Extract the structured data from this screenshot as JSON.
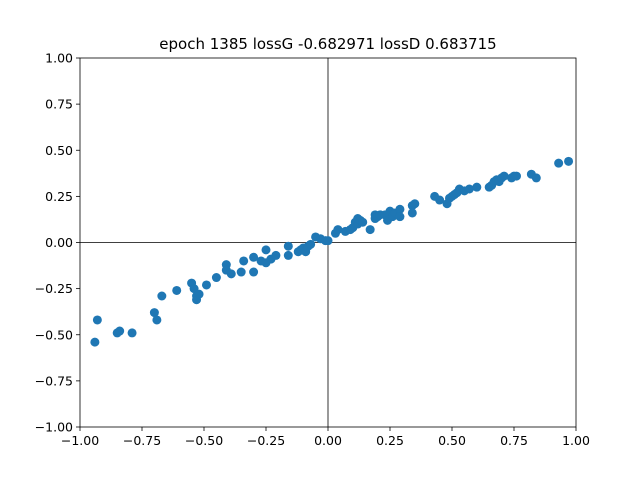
{
  "chart_data": {
    "type": "scatter",
    "title": "epoch 1385 lossG -0.682971 lossD 0.683715",
    "xlabel": "",
    "ylabel": "",
    "xlim": [
      -1.0,
      1.0
    ],
    "ylim": [
      -1.0,
      1.0
    ],
    "grid": false,
    "legend": "none",
    "reference_lines": {
      "x": 0,
      "y": 0
    },
    "xticks": [
      -1.0,
      -0.75,
      -0.5,
      -0.25,
      0.0,
      0.25,
      0.5,
      0.75,
      1.0
    ],
    "xtick_labels": [
      "−1.00",
      "−0.75",
      "−0.50",
      "−0.25",
      "0.00",
      "0.25",
      "0.50",
      "0.75",
      "1.00"
    ],
    "yticks": [
      -1.0,
      -0.75,
      -0.5,
      -0.25,
      0.0,
      0.25,
      0.5,
      0.75,
      1.0
    ],
    "ytick_labels": [
      "−1.00",
      "−0.75",
      "−0.50",
      "−0.25",
      "0.00",
      "0.25",
      "0.50",
      "0.75",
      "1.00"
    ],
    "colors": {
      "points": "#1f77b4",
      "axes": "#000000",
      "background": "#ffffff"
    },
    "series": [
      {
        "points": [
          [
            -0.94,
            -0.54
          ],
          [
            -0.93,
            -0.42
          ],
          [
            -0.85,
            -0.49
          ],
          [
            -0.84,
            -0.48
          ],
          [
            -0.79,
            -0.49
          ],
          [
            -0.7,
            -0.38
          ],
          [
            -0.69,
            -0.42
          ],
          [
            -0.67,
            -0.29
          ],
          [
            -0.61,
            -0.26
          ],
          [
            -0.55,
            -0.22
          ],
          [
            -0.54,
            -0.25
          ],
          [
            -0.53,
            -0.31
          ],
          [
            -0.53,
            -0.29
          ],
          [
            -0.52,
            -0.28
          ],
          [
            -0.49,
            -0.23
          ],
          [
            -0.45,
            -0.19
          ],
          [
            -0.41,
            -0.12
          ],
          [
            -0.41,
            -0.15
          ],
          [
            -0.39,
            -0.17
          ],
          [
            -0.35,
            -0.16
          ],
          [
            -0.34,
            -0.1
          ],
          [
            -0.3,
            -0.16
          ],
          [
            -0.3,
            -0.08
          ],
          [
            -0.27,
            -0.1
          ],
          [
            -0.25,
            -0.04
          ],
          [
            -0.25,
            -0.11
          ],
          [
            -0.23,
            -0.09
          ],
          [
            -0.21,
            -0.07
          ],
          [
            -0.16,
            -0.07
          ],
          [
            -0.16,
            -0.02
          ],
          [
            -0.12,
            -0.05
          ],
          [
            -0.11,
            -0.04
          ],
          [
            -0.1,
            -0.03
          ],
          [
            -0.09,
            -0.05
          ],
          [
            -0.08,
            -0.02
          ],
          [
            -0.07,
            -0.01
          ],
          [
            -0.05,
            0.03
          ],
          [
            -0.03,
            0.02
          ],
          [
            -0.01,
            0.01
          ],
          [
            0.0,
            0.01
          ],
          [
            0.03,
            0.05
          ],
          [
            0.04,
            0.07
          ],
          [
            0.07,
            0.06
          ],
          [
            0.09,
            0.07
          ],
          [
            0.1,
            0.08
          ],
          [
            0.11,
            0.11
          ],
          [
            0.12,
            0.1
          ],
          [
            0.12,
            0.13
          ],
          [
            0.13,
            0.12
          ],
          [
            0.14,
            0.11
          ],
          [
            0.17,
            0.07
          ],
          [
            0.19,
            0.13
          ],
          [
            0.19,
            0.15
          ],
          [
            0.2,
            0.14
          ],
          [
            0.21,
            0.15
          ],
          [
            0.23,
            0.15
          ],
          [
            0.24,
            0.12
          ],
          [
            0.25,
            0.17
          ],
          [
            0.26,
            0.14
          ],
          [
            0.27,
            0.16
          ],
          [
            0.29,
            0.18
          ],
          [
            0.29,
            0.14
          ],
          [
            0.34,
            0.2
          ],
          [
            0.34,
            0.16
          ],
          [
            0.35,
            0.21
          ],
          [
            0.43,
            0.25
          ],
          [
            0.45,
            0.23
          ],
          [
            0.48,
            0.21
          ],
          [
            0.49,
            0.24
          ],
          [
            0.5,
            0.25
          ],
          [
            0.51,
            0.26
          ],
          [
            0.52,
            0.27
          ],
          [
            0.53,
            0.29
          ],
          [
            0.55,
            0.28
          ],
          [
            0.57,
            0.29
          ],
          [
            0.6,
            0.3
          ],
          [
            0.65,
            0.3
          ],
          [
            0.66,
            0.31
          ],
          [
            0.67,
            0.33
          ],
          [
            0.68,
            0.34
          ],
          [
            0.69,
            0.33
          ],
          [
            0.7,
            0.35
          ],
          [
            0.71,
            0.36
          ],
          [
            0.74,
            0.35
          ],
          [
            0.75,
            0.36
          ],
          [
            0.76,
            0.36
          ],
          [
            0.82,
            0.37
          ],
          [
            0.84,
            0.35
          ],
          [
            0.93,
            0.43
          ],
          [
            0.97,
            0.44
          ]
        ]
      }
    ]
  }
}
